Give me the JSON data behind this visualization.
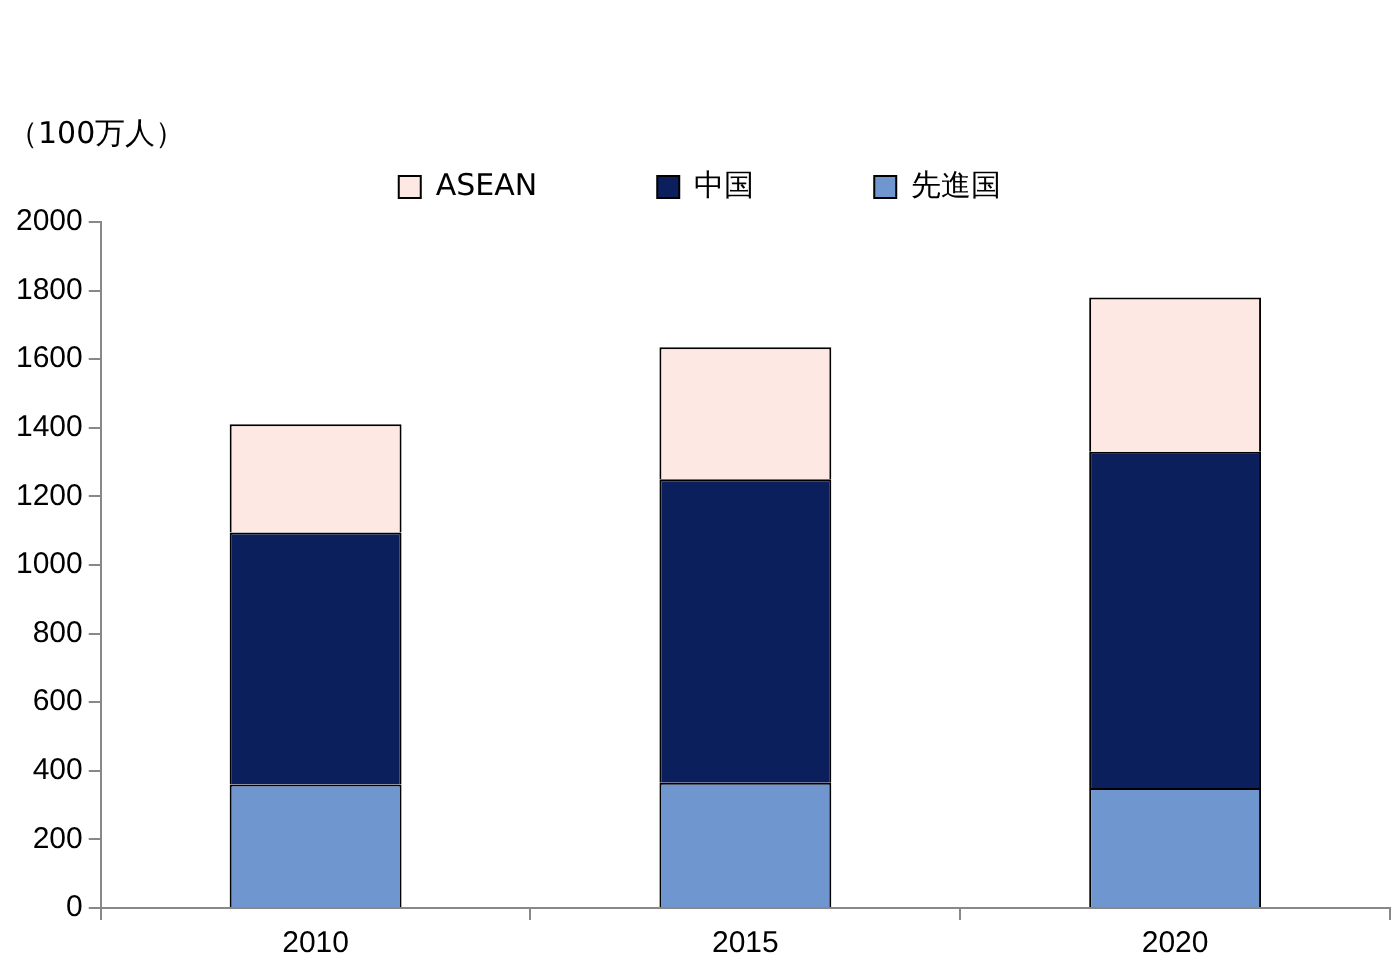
{
  "chart_data": {
    "type": "bar",
    "stacked": true,
    "ylabel": "（100万人）",
    "categories": [
      "2010",
      "2015",
      "2020"
    ],
    "series": [
      {
        "name": "先進国",
        "color": "#7096cf",
        "values": [
          360,
          365,
          350
        ]
      },
      {
        "name": "中国",
        "color": "#0b1f5c",
        "values": [
          735,
          885,
          980
        ]
      },
      {
        "name": "ASEAN",
        "color": "#fde8e4",
        "values": [
          315,
          385,
          450
        ]
      }
    ],
    "ylim": [
      0,
      2000
    ],
    "yticks": [
      0,
      200,
      400,
      600,
      800,
      1000,
      1200,
      1400,
      1600,
      1800,
      2000
    ],
    "legend": "top",
    "grid": false
  }
}
